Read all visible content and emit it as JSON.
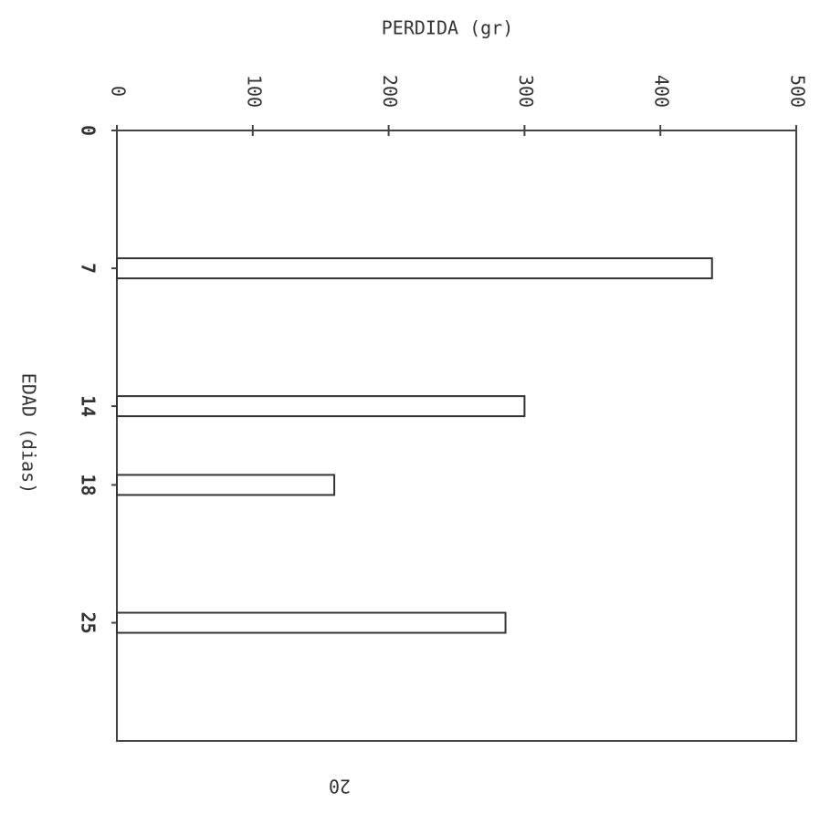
{
  "chart_data": {
    "type": "bar",
    "orientation": "horizontal",
    "title": "PERDIDA (gr)",
    "xlabel": "EDAD (dias)",
    "x": [
      7,
      14,
      18,
      25
    ],
    "values": [
      438,
      300,
      160,
      286
    ],
    "color": "#ffffff",
    "xlim": [
      0,
      31
    ],
    "xticks": [
      0,
      7,
      14,
      18,
      25
    ],
    "ylim": [
      0,
      500
    ],
    "yticks": [
      0,
      100,
      200,
      300,
      400,
      500
    ]
  },
  "page_number": "20"
}
